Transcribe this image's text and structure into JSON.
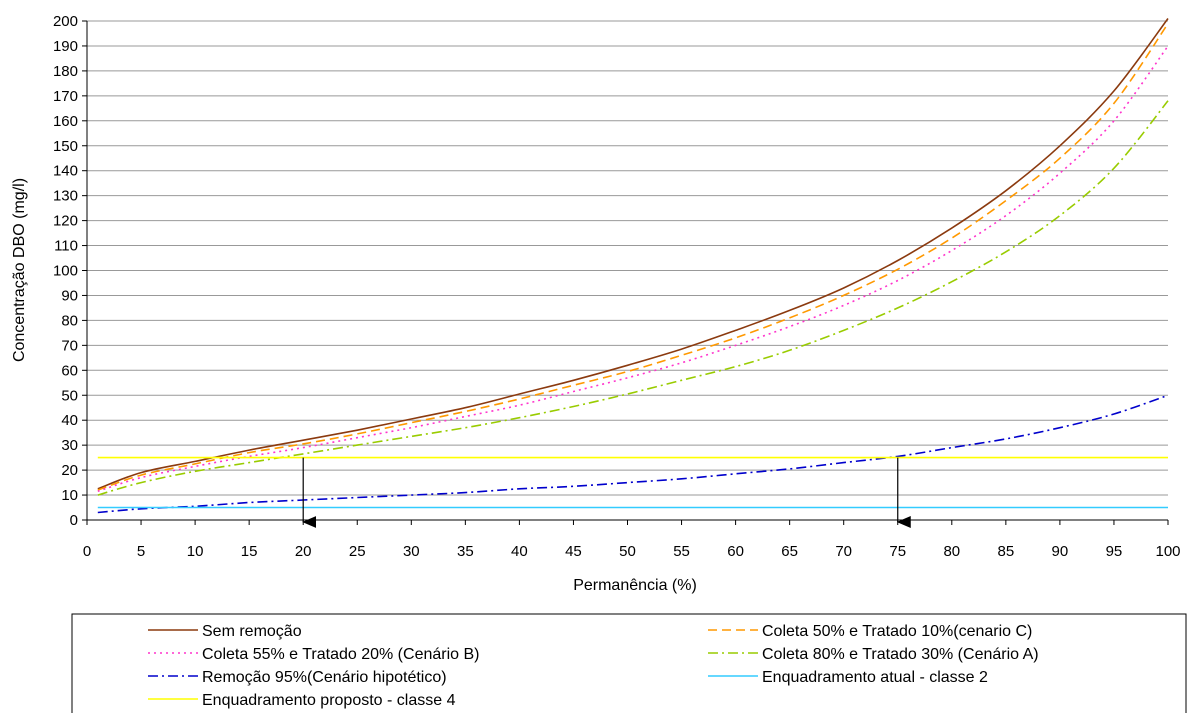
{
  "chart_data": {
    "type": "line",
    "xlabel": "Permanência (%)",
    "ylabel": "Concentração DBO (mg/l)",
    "xlim": [
      0,
      100
    ],
    "ylim": [
      0,
      200
    ],
    "x_ticks": [
      0,
      5,
      10,
      15,
      20,
      25,
      30,
      35,
      40,
      45,
      50,
      55,
      60,
      65,
      70,
      75,
      80,
      85,
      90,
      95,
      100
    ],
    "y_ticks": [
      0,
      10,
      20,
      30,
      40,
      50,
      60,
      70,
      80,
      90,
      100,
      110,
      120,
      130,
      140,
      150,
      160,
      170,
      180,
      190,
      200
    ],
    "grid": "horizontal",
    "legend_position": "bottom",
    "x": [
      1,
      5,
      10,
      15,
      20,
      25,
      30,
      35,
      40,
      45,
      50,
      55,
      60,
      65,
      70,
      75,
      80,
      85,
      90,
      95,
      100
    ],
    "series": [
      {
        "name": "Sem remoção",
        "color": "#8B3A0F",
        "dash": "solid",
        "values": [
          12.5,
          19,
          23.5,
          28,
          32,
          36,
          40.5,
          45,
          50.5,
          56,
          62,
          68.5,
          76,
          84,
          93,
          104,
          117,
          132,
          150,
          172,
          201
        ]
      },
      {
        "name": "Coleta 50% e Tratado 10%(cenario C)",
        "color": "#FF9900",
        "dash": "dashed",
        "values": [
          12,
          18,
          22.5,
          27,
          30.5,
          34.5,
          39,
          43.5,
          48.5,
          54,
          59.5,
          66,
          73,
          81,
          90,
          100.5,
          113,
          128,
          145,
          167,
          199
        ]
      },
      {
        "name": "Coleta 55% e Tratado 20% (Cenário B)",
        "color": "#FF33CC",
        "dash": "dotted",
        "values": [
          11.5,
          17,
          21.5,
          25.5,
          29,
          33,
          37,
          41.5,
          46,
          51.5,
          57,
          63,
          70,
          77.5,
          86,
          96,
          108,
          122,
          139,
          160,
          190
        ]
      },
      {
        "name": "Coleta 80% e Tratado 30% (Cenário A)",
        "color": "#99CC00",
        "dash": "dashdot",
        "values": [
          10,
          15,
          19.5,
          23,
          26.5,
          30,
          33.5,
          37,
          41,
          45.5,
          50.5,
          56,
          61.5,
          68,
          76,
          85,
          95.5,
          107.5,
          122,
          141,
          168
        ]
      },
      {
        "name": "Remoção 95%(Cenário hipotético)",
        "color": "#0000CC",
        "dash": "dashdot",
        "values": [
          3,
          4.5,
          5.5,
          7,
          8,
          9,
          10,
          11,
          12.5,
          13.5,
          15,
          16.5,
          18.5,
          20.5,
          23,
          25.5,
          29,
          32.5,
          37,
          42.5,
          50
        ]
      },
      {
        "name": "Enquadramento atual - classe 2",
        "color": "#33CCFF",
        "dash": "solid",
        "values": [
          5,
          5,
          5,
          5,
          5,
          5,
          5,
          5,
          5,
          5,
          5,
          5,
          5,
          5,
          5,
          5,
          5,
          5,
          5,
          5,
          5
        ]
      },
      {
        "name": "Enquadramento proposto - classe 4",
        "color": "#FFFF00",
        "dash": "solid",
        "values": [
          25,
          25,
          25,
          25,
          25,
          25,
          25,
          25,
          25,
          25,
          25,
          25,
          25,
          25,
          25,
          25,
          25,
          25,
          25,
          25,
          25
        ]
      }
    ],
    "annotations": [
      {
        "type": "arrow-down",
        "x": 20,
        "y_from": 25,
        "y_to": 0
      },
      {
        "type": "arrow-down",
        "x": 75,
        "y_from": 25,
        "y_to": 0
      }
    ]
  }
}
